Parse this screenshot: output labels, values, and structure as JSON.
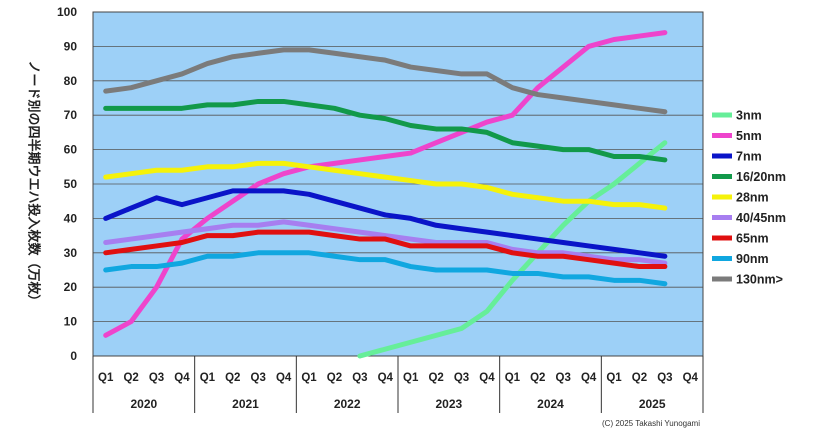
{
  "chart_data": {
    "type": "line",
    "title": "",
    "ylabel": "ノード別の四半期ウエハ投入枚数（万枚）",
    "ylim": [
      0,
      100
    ],
    "yticks": [
      0,
      10,
      20,
      30,
      40,
      50,
      60,
      70,
      80,
      90,
      100
    ],
    "grid": true,
    "background_color": "#9dd0f7",
    "legend_placement": "right",
    "years": [
      "2020",
      "2021",
      "2022",
      "2023",
      "2024",
      "2025"
    ],
    "quarters": [
      "Q1",
      "Q2",
      "Q3",
      "Q4"
    ],
    "categories": [
      "2020 Q1",
      "2020 Q2",
      "2020 Q3",
      "2020 Q4",
      "2021 Q1",
      "2021 Q2",
      "2021 Q3",
      "2021 Q4",
      "2022 Q1",
      "2022 Q2",
      "2022 Q3",
      "2022 Q4",
      "2023 Q1",
      "2023 Q2",
      "2023 Q3",
      "2023 Q4",
      "2024 Q1",
      "2024 Q2",
      "2024 Q3",
      "2024 Q4",
      "2025 Q1",
      "2025 Q2",
      "2025 Q3",
      "2025 Q4"
    ],
    "series": [
      {
        "name": "3nm",
        "color": "#66ee99",
        "values": [
          null,
          null,
          null,
          null,
          null,
          null,
          null,
          null,
          null,
          null,
          0,
          2,
          4,
          6,
          8,
          13,
          22,
          30,
          38,
          45,
          50,
          56,
          62,
          null
        ]
      },
      {
        "name": "5nm",
        "color": "#ee44cc",
        "values": [
          6,
          10,
          20,
          34,
          40,
          45,
          50,
          53,
          55,
          56,
          57,
          58,
          59,
          62,
          65,
          68,
          70,
          78,
          84,
          90,
          92,
          93,
          94,
          null
        ]
      },
      {
        "name": "7nm",
        "color": "#0a14c8",
        "values": [
          40,
          43,
          46,
          44,
          46,
          48,
          48,
          48,
          47,
          45,
          43,
          41,
          40,
          38,
          37,
          36,
          35,
          34,
          33,
          32,
          31,
          30,
          29,
          null
        ]
      },
      {
        "name": "16/20nm",
        "color": "#12994a",
        "values": [
          72,
          72,
          72,
          72,
          73,
          73,
          74,
          74,
          73,
          72,
          70,
          69,
          67,
          66,
          66,
          65,
          62,
          61,
          60,
          60,
          58,
          58,
          57,
          null
        ]
      },
      {
        "name": "28nm",
        "color": "#f5f20a",
        "values": [
          52,
          53,
          54,
          54,
          55,
          55,
          56,
          56,
          55,
          54,
          53,
          52,
          51,
          50,
          50,
          49,
          47,
          46,
          45,
          45,
          44,
          44,
          43,
          null
        ]
      },
      {
        "name": "40/45nm",
        "color": "#a77ef0",
        "values": [
          33,
          34,
          35,
          36,
          37,
          38,
          38,
          39,
          38,
          37,
          36,
          35,
          34,
          33,
          33,
          33,
          31,
          30,
          30,
          29,
          28,
          28,
          27,
          null
        ]
      },
      {
        "name": "65nm",
        "color": "#e01010",
        "values": [
          30,
          31,
          32,
          33,
          35,
          35,
          36,
          36,
          36,
          35,
          34,
          34,
          32,
          32,
          32,
          32,
          30,
          29,
          29,
          28,
          27,
          26,
          26,
          null
        ]
      },
      {
        "name": "90nm",
        "color": "#10a7e0",
        "values": [
          25,
          26,
          26,
          27,
          29,
          29,
          30,
          30,
          30,
          29,
          28,
          28,
          26,
          25,
          25,
          25,
          24,
          24,
          23,
          23,
          22,
          22,
          21,
          null
        ]
      },
      {
        "name": "130nm>",
        "color": "#7b7b7b",
        "values": [
          77,
          78,
          80,
          82,
          85,
          87,
          88,
          89,
          89,
          88,
          87,
          86,
          84,
          83,
          82,
          82,
          78,
          76,
          75,
          74,
          73,
          72,
          71,
          null
        ]
      }
    ],
    "credit": "(C) 2025 Takashi Yunogami"
  }
}
